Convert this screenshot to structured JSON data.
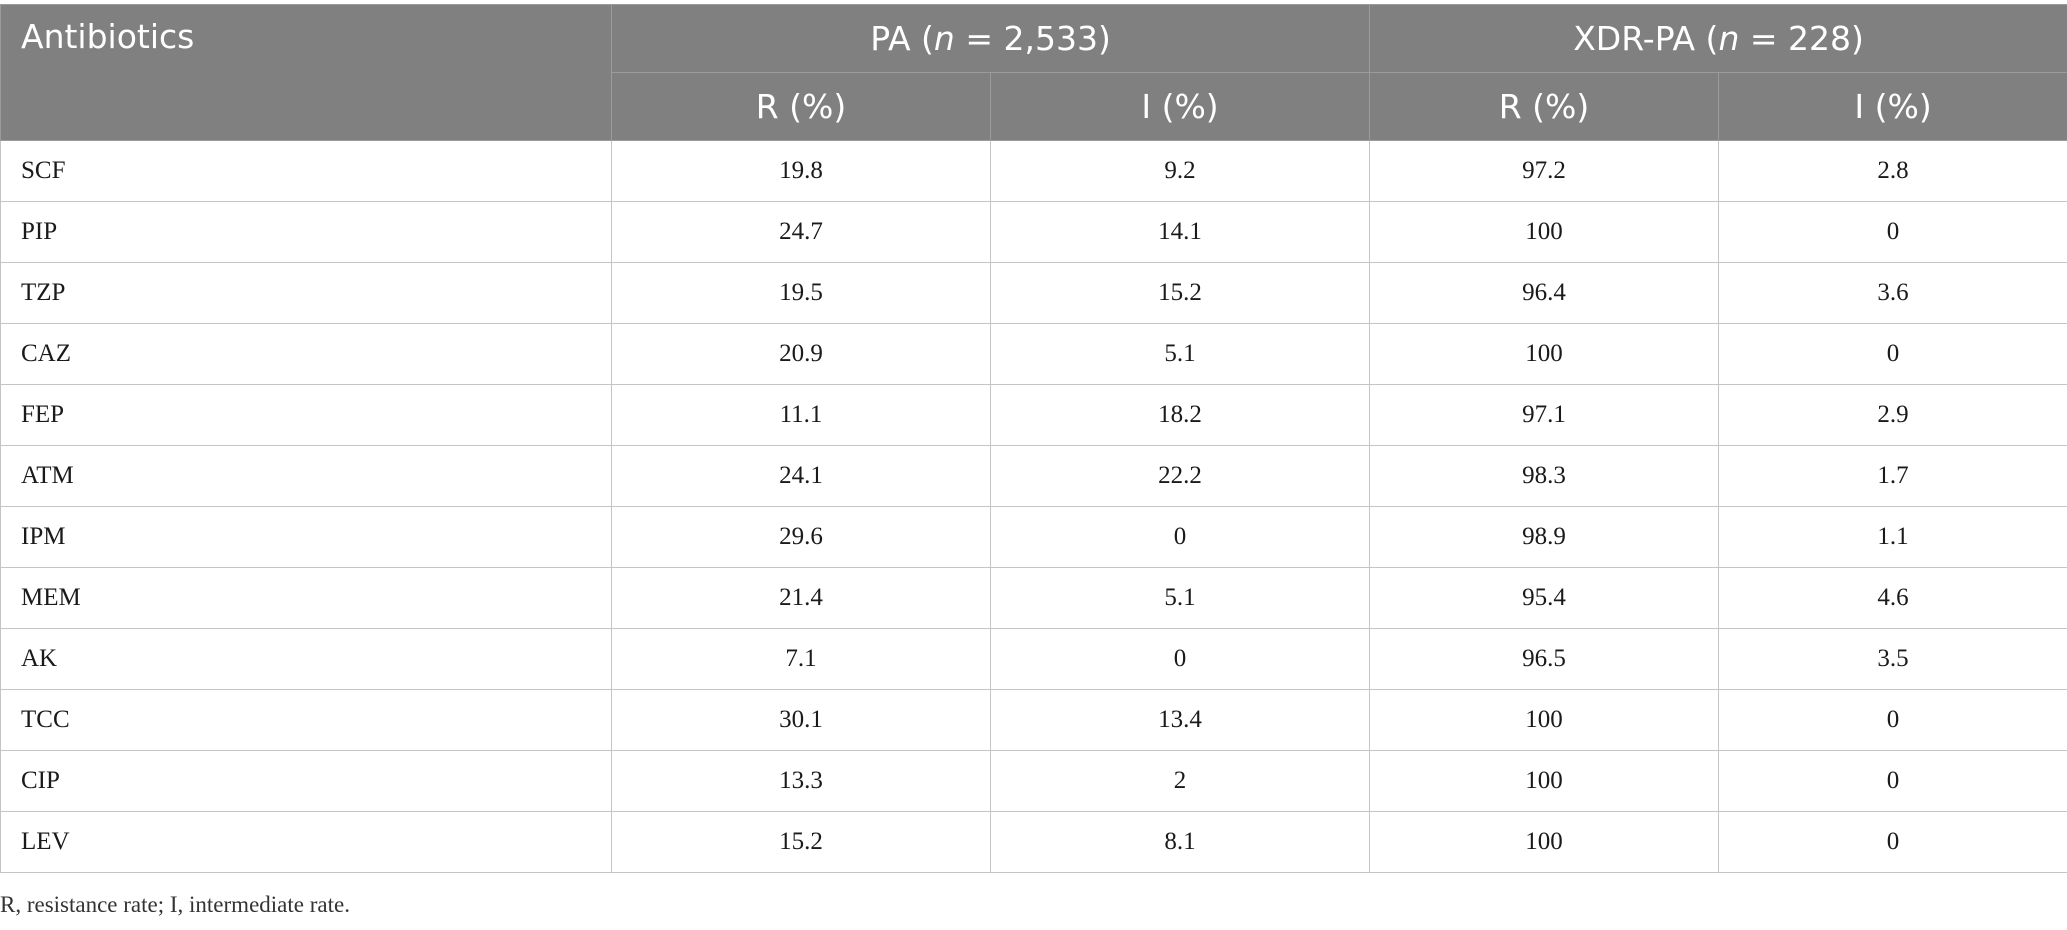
{
  "table": {
    "corner_header": "Antibiotics",
    "groups": [
      {
        "prefix": "PA (",
        "n_symbol": "n",
        "suffix": " = 2,533)"
      },
      {
        "prefix": "XDR-PA (",
        "n_symbol": "n",
        "suffix": " = 228)"
      }
    ],
    "subheaders": [
      "R (%)",
      "I (%)",
      "R (%)",
      "I (%)"
    ],
    "rows": [
      {
        "name": "SCF",
        "values": [
          "19.8",
          "9.2",
          "97.2",
          "2.8"
        ]
      },
      {
        "name": "PIP",
        "values": [
          "24.7",
          "14.1",
          "100",
          "0"
        ]
      },
      {
        "name": "TZP",
        "values": [
          "19.5",
          "15.2",
          "96.4",
          "3.6"
        ]
      },
      {
        "name": "CAZ",
        "values": [
          "20.9",
          "5.1",
          "100",
          "0"
        ]
      },
      {
        "name": "FEP",
        "values": [
          "11.1",
          "18.2",
          "97.1",
          "2.9"
        ]
      },
      {
        "name": "ATM",
        "values": [
          "24.1",
          "22.2",
          "98.3",
          "1.7"
        ]
      },
      {
        "name": "IPM",
        "values": [
          "29.6",
          "0",
          "98.9",
          "1.1"
        ]
      },
      {
        "name": "MEM",
        "values": [
          "21.4",
          "5.1",
          "95.4",
          "4.6"
        ]
      },
      {
        "name": "AK",
        "values": [
          "7.1",
          "0",
          "96.5",
          "3.5"
        ]
      },
      {
        "name": "TCC",
        "values": [
          "30.1",
          "13.4",
          "100",
          "0"
        ]
      },
      {
        "name": "CIP",
        "values": [
          "13.3",
          "2",
          "100",
          "0"
        ]
      },
      {
        "name": "LEV",
        "values": [
          "15.2",
          "8.1",
          "100",
          "0"
        ]
      }
    ]
  },
  "footnote": "R, resistance rate; I, intermediate rate."
}
